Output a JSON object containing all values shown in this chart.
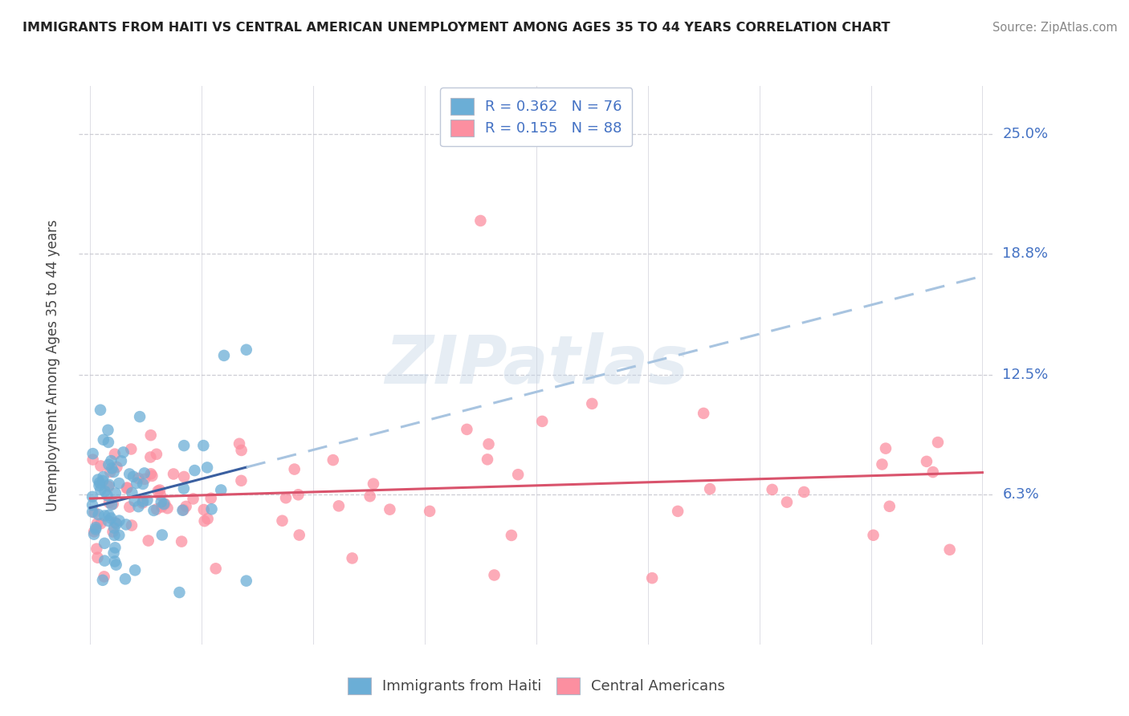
{
  "title": "IMMIGRANTS FROM HAITI VS CENTRAL AMERICAN UNEMPLOYMENT AMONG AGES 35 TO 44 YEARS CORRELATION CHART",
  "source": "Source: ZipAtlas.com",
  "ylabel": "Unemployment Among Ages 35 to 44 years",
  "ytick_labels": [
    "6.3%",
    "12.5%",
    "18.8%",
    "25.0%"
  ],
  "ytick_values": [
    6.3,
    12.5,
    18.8,
    25.0
  ],
  "xlim": [
    0.0,
    80.0
  ],
  "ylim": [
    0.0,
    27.0
  ],
  "series1_label": "Immigrants from Haiti",
  "series2_label": "Central Americans",
  "series1_marker_color": "#6baed6",
  "series2_marker_color": "#fc8fa0",
  "trendline1_color": "#3a5fa0",
  "trendline2_color": "#d9536c",
  "trendline_dashed_color": "#a8c4e0",
  "watermark": "ZIPatlas",
  "legend_r1": "R = 0.362",
  "legend_n1": "N = 76",
  "legend_r2": "R = 0.155",
  "legend_n2": "N = 88",
  "legend_text_color": "#4472c4",
  "ytick_label_color": "#4472c4",
  "title_color": "#222222",
  "source_color": "#888888"
}
